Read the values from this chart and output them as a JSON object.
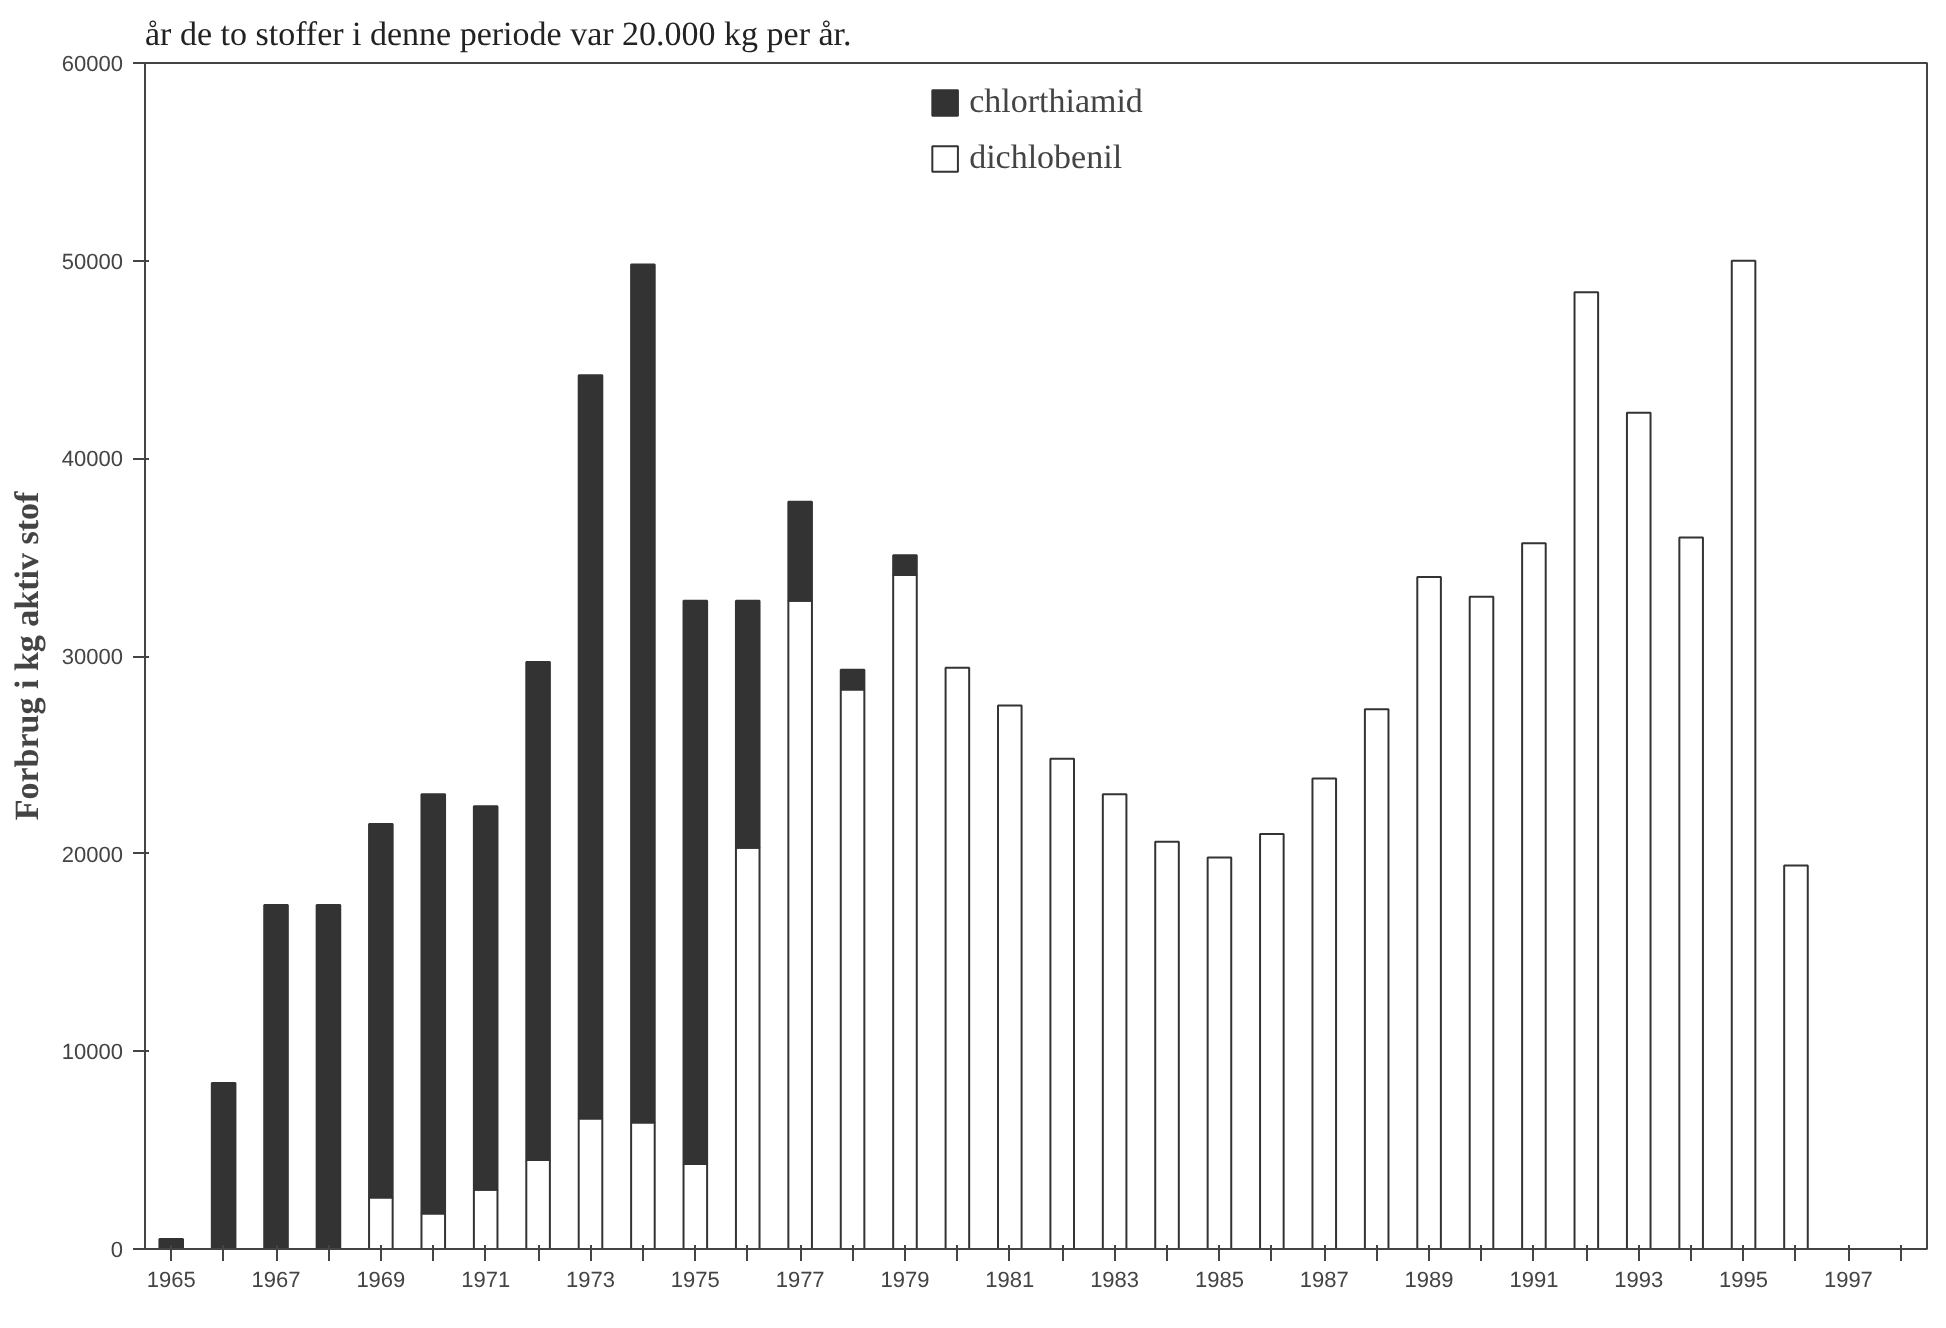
{
  "chart_data": {
    "type": "bar",
    "stacked": true,
    "ylabel": "Forbrug i kg aktiv stof",
    "annotations": [
      "år de to stoffer i denne periode var 20.000 kg per år."
    ],
    "categories": [
      "1965",
      null,
      "1967",
      null,
      "1969",
      null,
      "1971",
      null,
      "1973",
      null,
      "1975",
      null,
      "1977",
      null,
      "1979",
      null,
      "1981",
      null,
      "1983",
      null,
      "1985",
      null,
      "1987",
      null,
      "1989",
      null,
      "1991",
      null,
      "1993",
      null,
      "1995",
      null,
      "1997",
      null
    ],
    "series": [
      {
        "name": "dichlobenil",
        "color": "#ffffff",
        "values": [
          0,
          0,
          0,
          0,
          2600,
          1800,
          3000,
          4500,
          6600,
          6400,
          4300,
          20300,
          32800,
          28300,
          34100,
          29400,
          27500,
          24800,
          23000,
          20600,
          19800,
          21000,
          23800,
          27300,
          34000,
          33000,
          35700,
          48400,
          42300,
          36000,
          50000,
          19400,
          null,
          null
        ]
      },
      {
        "name": "chlorthiamid",
        "color": "#333333",
        "values": [
          500,
          8400,
          17400,
          17400,
          18900,
          21200,
          19400,
          25200,
          37600,
          43400,
          28500,
          12500,
          5000,
          1000,
          1000,
          0,
          0,
          0,
          0,
          0,
          0,
          0,
          0,
          0,
          0,
          0,
          0,
          0,
          0,
          0,
          0,
          0,
          null,
          null
        ]
      }
    ],
    "ylim": [
      0,
      60000
    ],
    "yticks": [
      0,
      10000,
      20000,
      30000,
      40000,
      50000,
      60000
    ],
    "grid": false,
    "legend": "top"
  }
}
